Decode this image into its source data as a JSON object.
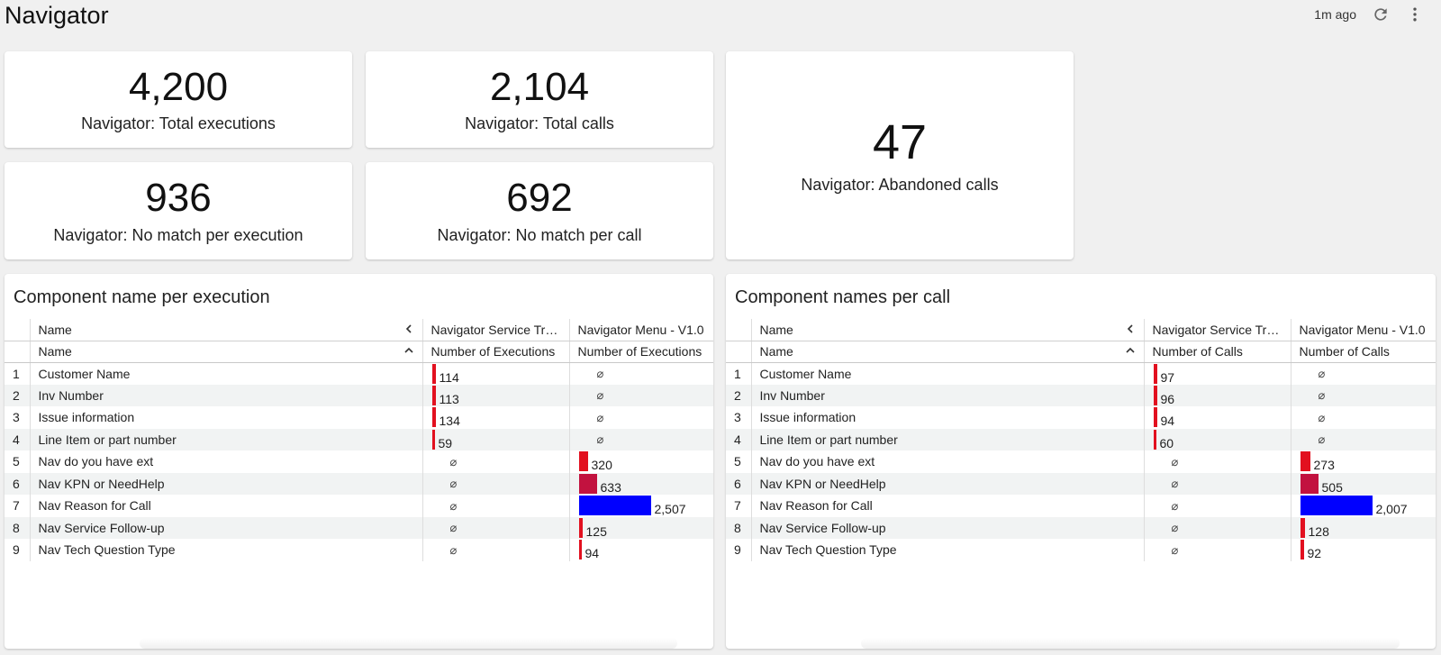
{
  "header": {
    "title": "Navigator",
    "last_updated": "1m ago",
    "refresh_icon": "refresh-icon",
    "more_icon": "more-vert-icon"
  },
  "kpis": {
    "total_executions": {
      "value": "4,200",
      "label": "Navigator: Total executions"
    },
    "total_calls": {
      "value": "2,104",
      "label": "Navigator: Total calls"
    },
    "no_match_per_execution": {
      "value": "936",
      "label": "Navigator: No match per execution"
    },
    "no_match_per_call": {
      "value": "692",
      "label": "Navigator: No match per call"
    },
    "abandoned_calls": {
      "value": "47",
      "label": "Navigator: Abandoned calls"
    }
  },
  "colors": {
    "red": "#e2101f",
    "crimson": "#c2123f",
    "blue": "#0000ff"
  },
  "null_symbol": "⌀",
  "tables": [
    {
      "title": "Component name per execution",
      "group_header": {
        "name": "Name",
        "col1": "Navigator Service Tra...",
        "col2": "Navigator Menu - V1.0"
      },
      "sub_header": {
        "name": "Name",
        "col1": "Number of Executions",
        "col2": "Number of Executions"
      },
      "max": 2507,
      "rows": [
        {
          "idx": "1",
          "name": "Customer Name",
          "v1": 114,
          "v1_label": "114",
          "v2": null
        },
        {
          "idx": "2",
          "name": "Inv Number",
          "v1": 113,
          "v1_label": "113",
          "v2": null
        },
        {
          "idx": "3",
          "name": "Issue information",
          "v1": 134,
          "v1_label": "134",
          "v2": null
        },
        {
          "idx": "4",
          "name": "Line Item or part number",
          "v1": 59,
          "v1_label": "59",
          "v2": null
        },
        {
          "idx": "5",
          "name": "Nav do you have ext",
          "v1": null,
          "v2": 320,
          "v2_label": "320"
        },
        {
          "idx": "6",
          "name": "Nav KPN or NeedHelp",
          "v1": null,
          "v2": 633,
          "v2_label": "633"
        },
        {
          "idx": "7",
          "name": "Nav Reason for Call",
          "v1": null,
          "v2": 2507,
          "v2_label": "2,507"
        },
        {
          "idx": "8",
          "name": "Nav Service Follow-up",
          "v1": null,
          "v2": 125,
          "v2_label": "125"
        },
        {
          "idx": "9",
          "name": "Nav Tech Question Type",
          "v1": null,
          "v2": 94,
          "v2_label": "94"
        }
      ]
    },
    {
      "title": "Component names per call",
      "group_header": {
        "name": "Name",
        "col1": "Navigator Service Tra...",
        "col2": "Navigator Menu - V1.0"
      },
      "sub_header": {
        "name": "Name",
        "col1": "Number of Calls",
        "col2": "Number of Calls"
      },
      "max": 2007,
      "rows": [
        {
          "idx": "1",
          "name": "Customer Name",
          "v1": 97,
          "v1_label": "97",
          "v2": null
        },
        {
          "idx": "2",
          "name": "Inv Number",
          "v1": 96,
          "v1_label": "96",
          "v2": null
        },
        {
          "idx": "3",
          "name": "Issue information",
          "v1": 94,
          "v1_label": "94",
          "v2": null
        },
        {
          "idx": "4",
          "name": "Line Item or part number",
          "v1": 60,
          "v1_label": "60",
          "v2": null
        },
        {
          "idx": "5",
          "name": "Nav do you have ext",
          "v1": null,
          "v2": 273,
          "v2_label": "273"
        },
        {
          "idx": "6",
          "name": "Nav KPN or NeedHelp",
          "v1": null,
          "v2": 505,
          "v2_label": "505"
        },
        {
          "idx": "7",
          "name": "Nav Reason for Call",
          "v1": null,
          "v2": 2007,
          "v2_label": "2,007"
        },
        {
          "idx": "8",
          "name": "Nav Service Follow-up",
          "v1": null,
          "v2": 128,
          "v2_label": "128"
        },
        {
          "idx": "9",
          "name": "Nav Tech Question Type",
          "v1": null,
          "v2": 92,
          "v2_label": "92"
        }
      ]
    }
  ]
}
